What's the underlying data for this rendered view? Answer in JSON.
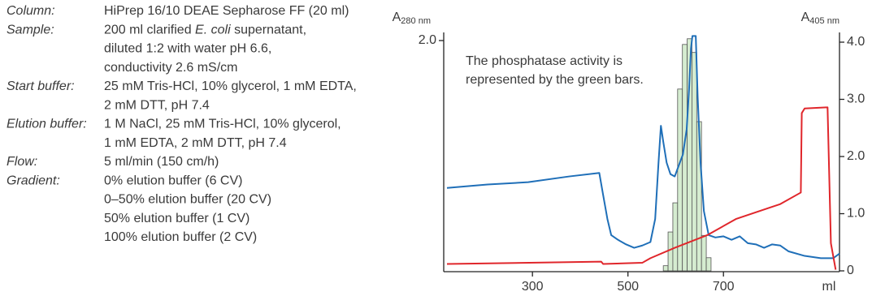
{
  "method": [
    {
      "label": "Column:",
      "lines": [
        [
          {
            "text": "HiPrep 16/10 DEAE Sepharose FF (20 ml)"
          }
        ]
      ]
    },
    {
      "label": "Sample:",
      "lines": [
        [
          {
            "text": "200 ml clarified "
          },
          {
            "text": "E. coli",
            "italic": true
          },
          {
            "text": " supernatant,"
          }
        ],
        [
          {
            "text": "diluted 1:2 with water pH 6.6,"
          }
        ],
        [
          {
            "text": "conductivity 2.6 mS/cm"
          }
        ]
      ]
    },
    {
      "label": "Start buffer:",
      "lines": [
        [
          {
            "text": "25 mM Tris-HCl, 10% glycerol, 1 mM EDTA,"
          }
        ],
        [
          {
            "text": "2 mM DTT, pH 7.4"
          }
        ]
      ]
    },
    {
      "label": "Elution buffer:",
      "lines": [
        [
          {
            "text": "1 M NaCl, 25 mM Tris-HCl, 10% glycerol,"
          }
        ],
        [
          {
            "text": "1 mM EDTA, 2 mM DTT, pH 7.4"
          }
        ]
      ]
    },
    {
      "label": "Flow:",
      "lines": [
        [
          {
            "text": "5 ml/min (150 cm/h)"
          }
        ]
      ]
    },
    {
      "label": "Gradient:",
      "lines": [
        [
          {
            "text": "0% elution buffer (6 CV)"
          }
        ],
        [
          {
            "text": "0–50% elution buffer (20 CV)"
          }
        ],
        [
          {
            "text": "50% elution buffer (1 CV)"
          }
        ],
        [
          {
            "text": "100% elution buffer (2 CV)"
          }
        ]
      ]
    }
  ],
  "chart_data": {
    "type": "line",
    "ylabel": {
      "symbol": "A",
      "subscript": "280 nm"
    },
    "y2label": {
      "symbol": "A",
      "subscript": "405 nm"
    },
    "xlabel": "ml",
    "annotation": [
      "The phosphatase activity is",
      "represented by the green bars."
    ],
    "xlim": [
      121,
      943
    ],
    "xticks": [
      300,
      500,
      700
    ],
    "ylim": [
      0,
      2
    ],
    "yticks": [
      {
        "value": 2,
        "label": "2.0"
      }
    ],
    "y2lim": [
      0,
      4
    ],
    "y2ticks": [
      0,
      {
        "value": 1,
        "label": "1.0"
      },
      {
        "value": 2,
        "label": "2.0"
      },
      {
        "value": 3,
        "label": "3.0"
      },
      {
        "value": 4,
        "label": "4.0"
      }
    ],
    "series": [
      {
        "color": "#1f6fb8",
        "x": [
          121,
          206,
          291,
          377,
          440,
          448,
          457,
          465,
          479,
          496,
          513,
          530,
          547,
          557,
          564,
          569,
          574,
          581,
          589,
          598,
          606,
          615,
          623,
          628,
          632,
          635,
          642,
          646,
          652,
          659,
          669,
          683,
          700,
          717,
          734,
          751,
          768,
          785,
          802,
          819,
          836,
          870,
          904,
          930,
          943
        ],
        "values": [
          0.72,
          0.75,
          0.77,
          0.82,
          0.85,
          0.66,
          0.45,
          0.31,
          0.27,
          0.23,
          0.2,
          0.22,
          0.25,
          0.45,
          0.94,
          1.26,
          1.12,
          0.94,
          0.84,
          0.82,
          0.91,
          1.01,
          1.23,
          1.58,
          1.93,
          2.04,
          2.04,
          1.51,
          0.94,
          0.52,
          0.31,
          0.29,
          0.3,
          0.27,
          0.3,
          0.24,
          0.23,
          0.2,
          0.23,
          0.22,
          0.17,
          0.13,
          0.11,
          0.11,
          0.15
        ]
      },
      {
        "color": "#e0262b",
        "x": [
          121,
          444,
          448,
          530,
          547,
          598,
          666,
          726,
          819,
          862,
          864,
          870,
          918,
          925,
          935
        ],
        "values": [
          0.06,
          0.08,
          0.06,
          0.07,
          0.11,
          0.2,
          0.31,
          0.45,
          0.58,
          0.68,
          1.37,
          1.41,
          1.42,
          0.24,
          0.01
        ]
      }
    ],
    "bars": {
      "axis": "y2",
      "color": "#d5ecd0",
      "bins": [
        574,
        584,
        594,
        604,
        614,
        624,
        634,
        644,
        654,
        664,
        674
      ],
      "values": [
        0.09,
        0.68,
        1.19,
        3.18,
        3.96,
        4.06,
        3.82,
        2.61,
        0.62,
        0.23
      ]
    }
  }
}
